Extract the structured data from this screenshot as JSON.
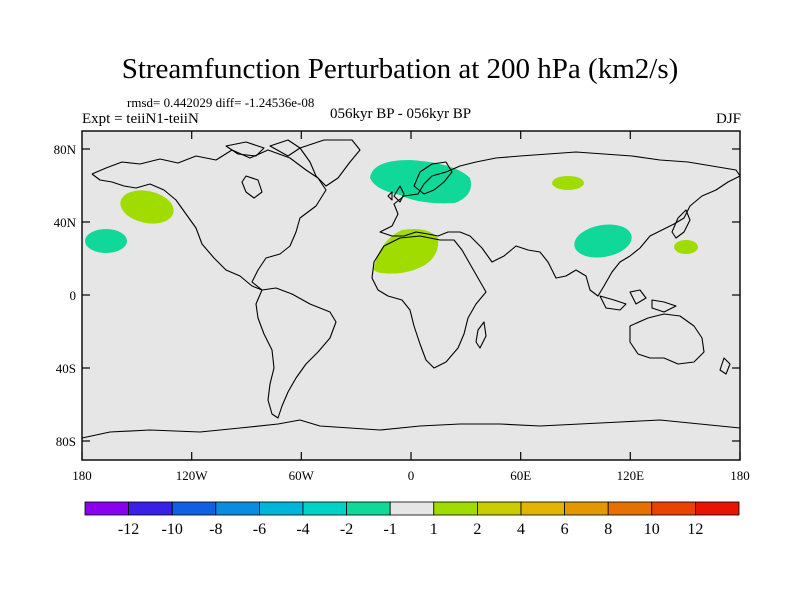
{
  "map": {
    "title": "Streamfunction Perturbation at 200 hPa (km2/s)",
    "stats_text": "rmsd= 0.442029 diff= -1.24536e-08",
    "experiment_text": "Expt = teiiN1-teiiN",
    "period_text": "056kyr BP - 056kyr BP",
    "season_text": "DJF",
    "projection": "equirectangular",
    "background_color": "#e6e6e6",
    "lat_ticks": [
      "80N",
      "40N",
      "0",
      "40S",
      "80S"
    ],
    "lon_ticks": [
      "180",
      "120W",
      "60W",
      "0",
      "60E",
      "120E",
      "180"
    ],
    "anomalies": [
      {
        "region": "North Atlantic / Scandinavia",
        "level": "-1 to -2",
        "color": "#10d898"
      },
      {
        "region": "Central Siberia",
        "level": "1 to 2",
        "color": "#a0dc00"
      },
      {
        "region": "NE Pacific (Gulf of Alaska)",
        "level": "1 to 2",
        "color": "#a0dc00"
      },
      {
        "region": "Central North Pacific (Hawaii)",
        "level": "-1 to -2",
        "color": "#10d898"
      },
      {
        "region": "North Africa / Sahara",
        "level": "1 to 2",
        "color": "#a0dc00"
      },
      {
        "region": "China",
        "level": "-1 to -2",
        "color": "#10d898"
      },
      {
        "region": "Western Pacific (Japan)",
        "level": "1 to 2",
        "color": "#a0dc00"
      }
    ]
  },
  "colorbar": {
    "labels": [
      "-12",
      "-10",
      "-8",
      "-6",
      "-4",
      "-2",
      "-1",
      "1",
      "2",
      "4",
      "6",
      "8",
      "10",
      "12"
    ],
    "colors": [
      "#8c00f0",
      "#3a20e6",
      "#1060e6",
      "#0a8ce0",
      "#00b4dc",
      "#00d2c8",
      "#10d898",
      "#e6e6e6",
      "#a0dc00",
      "#c8cc00",
      "#e0b400",
      "#e69600",
      "#e67000",
      "#e64400",
      "#e61400"
    ]
  }
}
